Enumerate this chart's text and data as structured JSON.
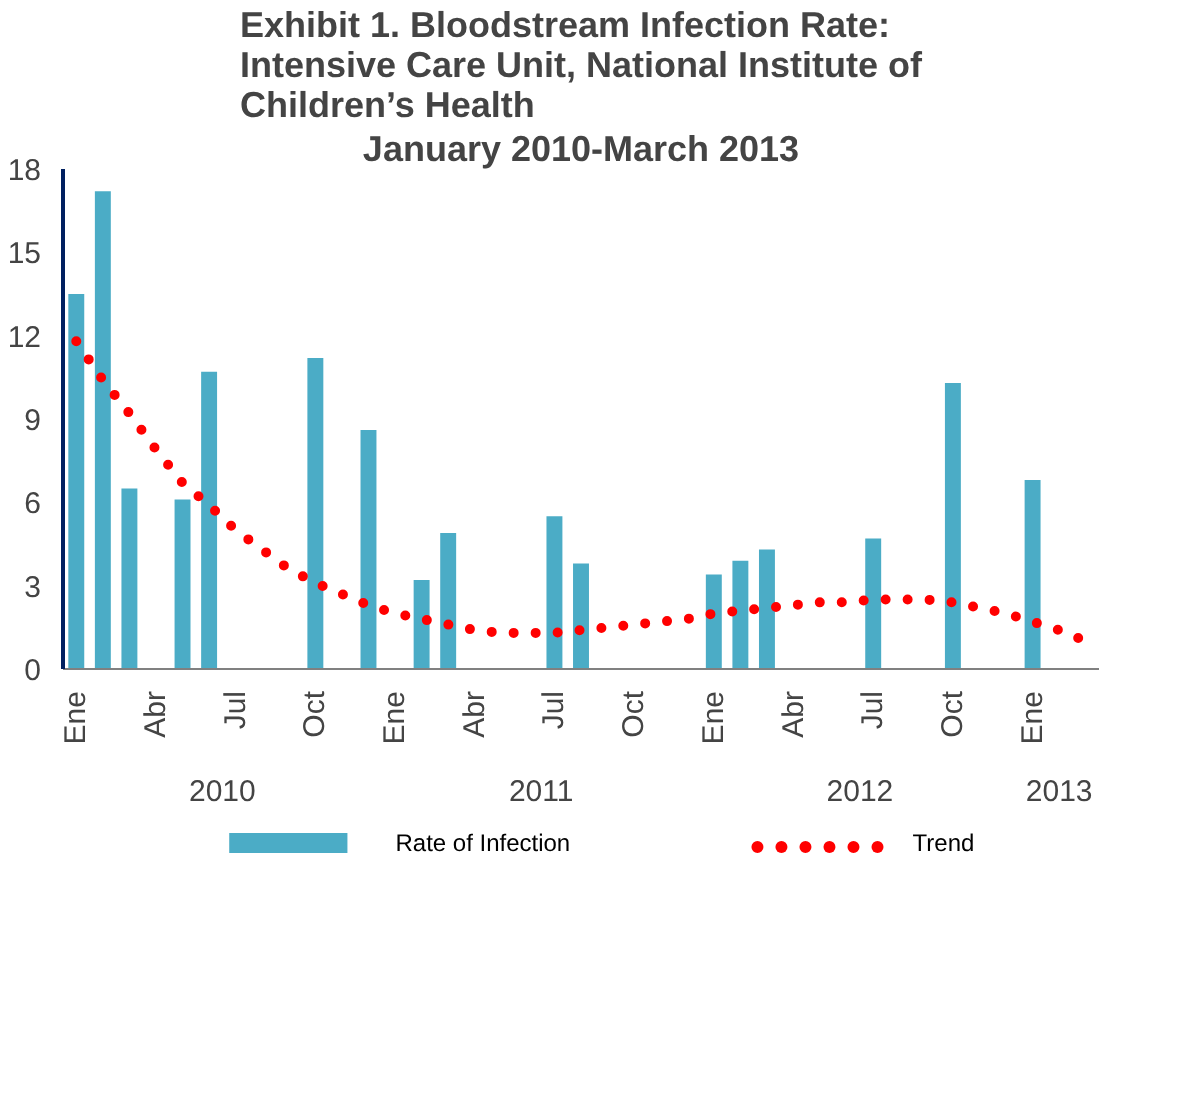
{
  "chart_data": {
    "type": "bar",
    "title": "Exhibit 1. Bloodstream Infection Rate:\nIntensive Care Unit, National Institute of\nChildren’s Health",
    "subtitle": "January 2010-March 2013",
    "categories": [
      "Ene",
      null,
      null,
      "Abr",
      null,
      null,
      "Jul",
      null,
      null,
      "Oct",
      null,
      null,
      "Ene",
      null,
      null,
      "Abr",
      null,
      null,
      "Jul",
      null,
      null,
      "Oct",
      null,
      null,
      "Ene",
      null,
      null,
      "Abr",
      null,
      null,
      "Jul",
      null,
      null,
      "Oct",
      null,
      null,
      "Ene",
      null,
      null
    ],
    "series": [
      {
        "name": "Rate of Infection",
        "color": "#4bacc6",
        "values": [
          13.5,
          17.2,
          6.5,
          null,
          6.1,
          10.7,
          null,
          null,
          null,
          11.2,
          null,
          8.6,
          null,
          3.2,
          4.9,
          null,
          null,
          null,
          5.5,
          3.8,
          null,
          null,
          null,
          null,
          3.4,
          3.9,
          4.3,
          null,
          null,
          null,
          4.7,
          null,
          null,
          10.3,
          null,
          null,
          6.8,
          null,
          null
        ]
      },
      {
        "name": "Trend",
        "type": "line",
        "line_style": "dotted",
        "color": "#ff0000",
        "values": [
          11.8,
          10.4,
          9.2,
          7.9,
          6.7,
          5.9,
          5.0,
          4.3,
          3.6,
          3.1,
          2.7,
          2.3,
          2.0,
          1.8,
          1.6,
          1.4,
          1.3,
          1.3,
          1.3,
          1.4,
          1.5,
          1.6,
          1.7,
          1.8,
          2.0,
          2.1,
          2.2,
          2.3,
          2.4,
          2.4,
          2.5,
          2.5,
          2.5,
          2.4,
          2.2,
          2.0,
          1.7,
          1.4,
          1.0
        ]
      }
    ],
    "annotations": [
      "2010",
      "2011",
      "2012",
      "2013"
    ],
    "ylim": [
      0,
      18
    ],
    "yticks": [
      0,
      3,
      6,
      9,
      12,
      15,
      18
    ],
    "grid": false,
    "legend": "bottom"
  }
}
